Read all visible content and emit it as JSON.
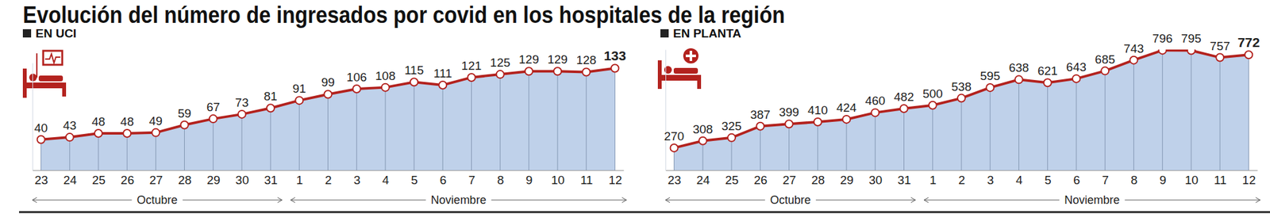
{
  "title": "Evolución del número de ingresados por covid en los hospitales de la región",
  "chart_data": [
    {
      "type": "area",
      "title": "EN UCI",
      "categories": [
        "23",
        "24",
        "25",
        "26",
        "27",
        "28",
        "29",
        "30",
        "31",
        "1",
        "2",
        "3",
        "4",
        "5",
        "6",
        "7",
        "8",
        "9",
        "10",
        "11",
        "12"
      ],
      "values": [
        40,
        43,
        48,
        48,
        49,
        59,
        67,
        73,
        81,
        91,
        99,
        106,
        108,
        115,
        111,
        121,
        125,
        129,
        129,
        128,
        133
      ],
      "color": "#b3221e",
      "marker": "circle",
      "ylim": [
        0,
        140
      ],
      "tick_labels": "x",
      "data_labels": true,
      "grid": true,
      "x_groups": [
        {
          "label": "Octubre",
          "from": "23",
          "to": "31"
        },
        {
          "label": "Noviembre",
          "from": "1",
          "to": "12"
        }
      ]
    },
    {
      "type": "area",
      "title": "EN PLANTA",
      "categories": [
        "23",
        "24",
        "25",
        "26",
        "27",
        "28",
        "29",
        "30",
        "31",
        "1",
        "2",
        "3",
        "4",
        "5",
        "6",
        "7",
        "8",
        "9",
        "10",
        "11",
        "12"
      ],
      "values": [
        270,
        308,
        325,
        387,
        399,
        410,
        424,
        460,
        482,
        500,
        538,
        595,
        638,
        621,
        643,
        685,
        743,
        796,
        795,
        757,
        772
      ],
      "color": "#b3221e",
      "marker": "circle",
      "ylim": [
        150,
        800
      ],
      "tick_labels": "x",
      "data_labels": true,
      "grid": true,
      "x_groups": [
        {
          "label": "Octubre",
          "from": "23",
          "to": "31"
        },
        {
          "label": "Noviembre",
          "from": "1",
          "to": "12"
        }
      ]
    }
  ]
}
